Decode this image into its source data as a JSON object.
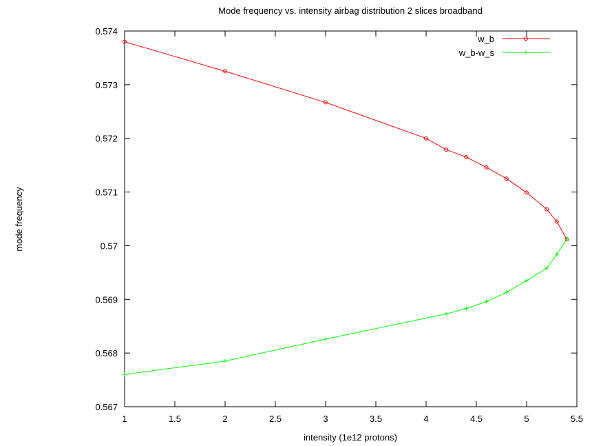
{
  "chart_data": {
    "type": "line",
    "title": "Mode frequency vs. intensity airbag distribution 2 slices broadband",
    "xlabel": "intensity  (1e12 protons)",
    "ylabel": "mode frequency",
    "xlim": [
      1,
      5.5
    ],
    "ylim": [
      0.567,
      0.574
    ],
    "xticks": [
      1,
      1.5,
      2,
      2.5,
      3,
      3.5,
      4,
      4.5,
      5,
      5.5
    ],
    "yticks": [
      0.567,
      0.568,
      0.569,
      0.57,
      0.571,
      0.572,
      0.573,
      0.574
    ],
    "xtick_labels": [
      "1",
      "1.5",
      "2",
      "2.5",
      "3",
      "3.5",
      "4",
      "4.5",
      "5",
      "5.5"
    ],
    "ytick_labels": [
      "0.567",
      "0.568",
      "0.569",
      "0.57",
      "0.571",
      "0.572",
      "0.573",
      "0.574"
    ],
    "grid": false,
    "legend_position": "top-right",
    "series": [
      {
        "name": "w_b",
        "color": "#ff0000",
        "marker": "circle",
        "x": [
          1,
          2,
          3,
          4,
          4.2,
          4.4,
          4.6,
          4.8,
          5,
          5.2,
          5.3,
          5.4
        ],
        "y": [
          0.5738,
          0.57325,
          0.57267,
          0.572,
          0.57179,
          0.57165,
          0.57146,
          0.57125,
          0.57099,
          0.57068,
          0.57045,
          0.57012
        ]
      },
      {
        "name": "w_b-w_s",
        "color": "#00ff00",
        "marker": "plus",
        "x": [
          1,
          2,
          3,
          4.2,
          4.4,
          4.6,
          4.8,
          5,
          5.2,
          5.3,
          5.4
        ],
        "y": [
          0.5676,
          0.56785,
          0.56826,
          0.56873,
          0.56883,
          0.56896,
          0.56913,
          0.56935,
          0.56958,
          0.56984,
          0.57012
        ]
      }
    ]
  }
}
